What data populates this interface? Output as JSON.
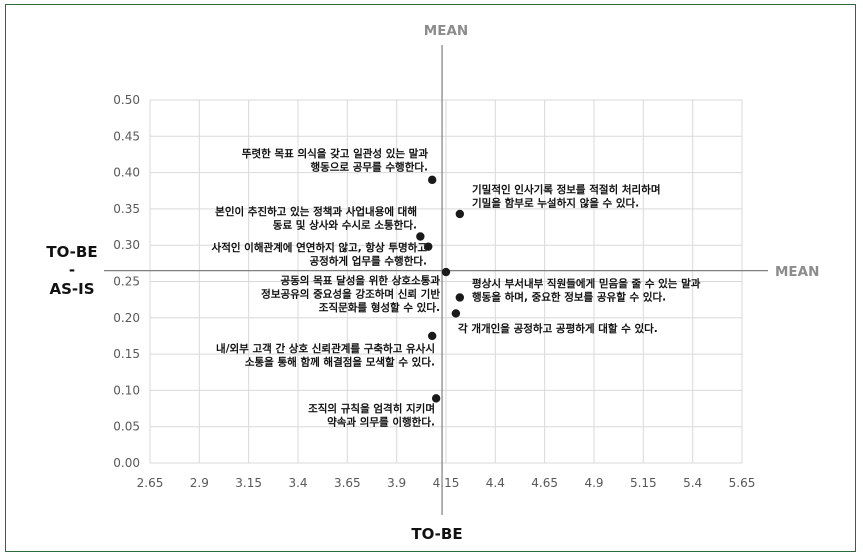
{
  "chart_data": {
    "type": "scatter",
    "xlabel": "TO-BE",
    "ylabel_lines": [
      "TO-BE",
      "-",
      "AS-IS"
    ],
    "x_ticks": [
      "2.65",
      "2.9",
      "3.15",
      "3.4",
      "3.65",
      "3.9",
      "4.15",
      "4.4",
      "4.65",
      "4.9",
      "5.15",
      "5.4",
      "5.65"
    ],
    "y_ticks": [
      "0.00",
      "0.05",
      "0.10",
      "0.15",
      "0.20",
      "0.25",
      "0.30",
      "0.35",
      "0.40",
      "0.45",
      "0.50"
    ],
    "xlim": [
      2.65,
      5.65
    ],
    "ylim": [
      0,
      0.5
    ],
    "grid": true,
    "mean_x": 4.13,
    "mean_y": 0.265,
    "mean_x_label": "MEAN",
    "mean_y_label": "MEAN",
    "colors": {
      "point": "#1a1a1a",
      "grid": "#d9d9d9",
      "mean_line": "#7f7f7f",
      "frame": "#2f6a3c"
    },
    "points": [
      {
        "x": 4.08,
        "y": 0.39,
        "label": [
          "뚜렷한 목표 의식을 갖고 일관성 있는 말과",
          "행동으로 공무를 수행한다."
        ]
      },
      {
        "x": 4.22,
        "y": 0.343,
        "label": [
          "기밀적인 인사기록 정보를 적절히 처리하며",
          "기밀을 함부로 누설하지 않을 수 있다."
        ]
      },
      {
        "x": 4.02,
        "y": 0.312,
        "label": [
          "본인이 추진하고 있는 정책과 사업내용에 대해",
          "동료 및 상사와 수시로 소통한다."
        ]
      },
      {
        "x": 4.06,
        "y": 0.298,
        "label": [
          "사적인 이해관계에 연연하지 않고, 항상 투명하고",
          "공정하게 업무를 수행한다."
        ]
      },
      {
        "x": 4.15,
        "y": 0.263,
        "label": [
          "공동의 목표 달성을 위한 상호소통과",
          "정보공유의 중요성을 강조하며 신뢰 기반",
          "조직문화를 형성할 수 있다."
        ]
      },
      {
        "x": 4.22,
        "y": 0.228,
        "label": [
          "평상시 부서내부 직원들에게 믿음을 줄 수 있는 말과",
          "행동을 하며, 중요한 정보를 공유할 수 있다."
        ]
      },
      {
        "x": 4.2,
        "y": 0.206,
        "label": [
          "각 개개인을 공정하고 공평하게 대할 수 있다."
        ]
      },
      {
        "x": 4.08,
        "y": 0.175,
        "label": [
          "내/외부 고객 간 상호 신뢰관계를 구축하고 유사시",
          "소통을 통해 함께 해결점을 모색할 수 있다."
        ]
      },
      {
        "x": 4.1,
        "y": 0.089,
        "label": [
          "조직의 규칙을 엄격히 지키며",
          "약속과 의무를 이행한다."
        ]
      }
    ]
  }
}
